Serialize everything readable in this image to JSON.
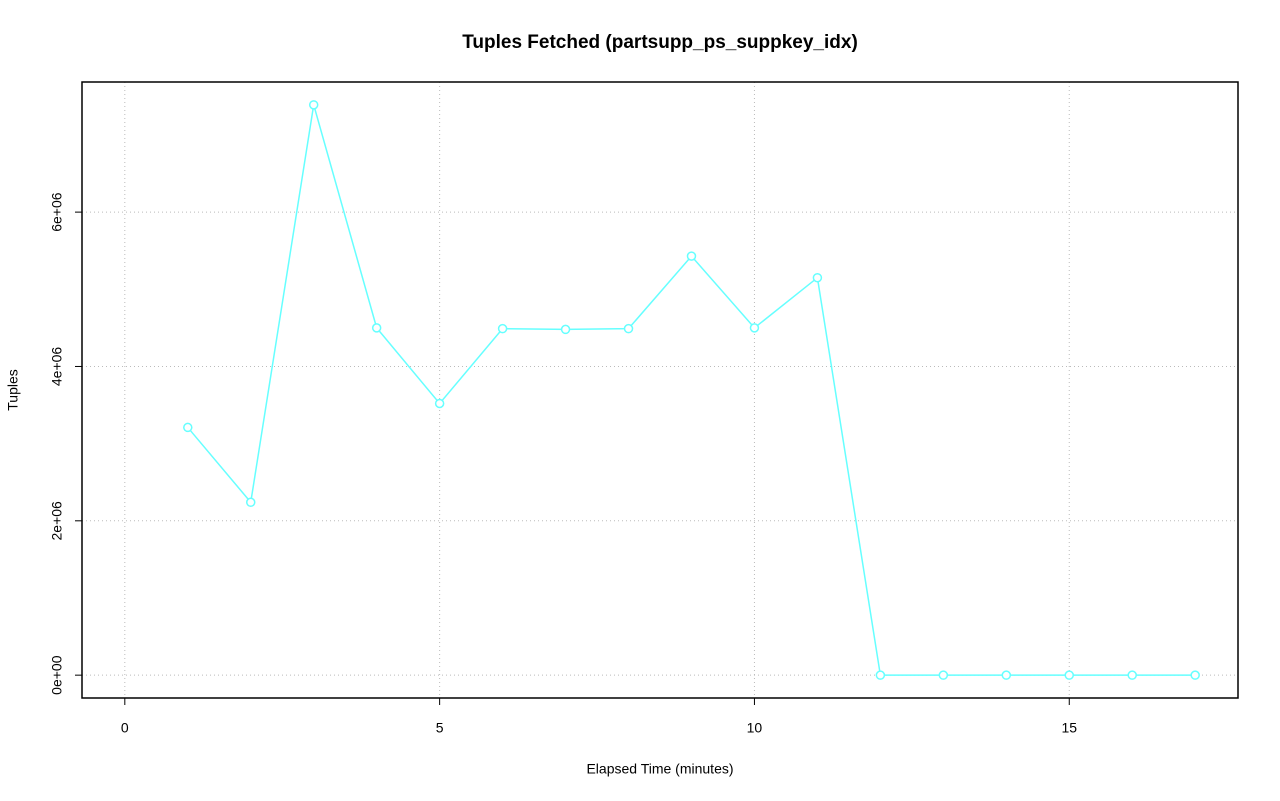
{
  "chart_data": {
    "type": "line",
    "title": "Tuples Fetched (partsupp_ps_suppkey_idx)",
    "x_label": "Elapsed Time (minutes)",
    "y_label": "Tuples",
    "x": [
      1,
      2,
      3,
      4,
      5,
      6,
      7,
      8,
      9,
      10,
      11,
      12,
      13,
      14,
      15,
      16,
      17
    ],
    "series": [
      {
        "name": "partsupp_ps_suppkey_idx",
        "color": "#66ffff",
        "values": [
          3210000,
          2240000,
          7390000,
          4500000,
          3520000,
          4490000,
          4480000,
          4490000,
          5430000,
          4500000,
          5150000,
          0,
          0,
          0,
          0,
          0,
          0
        ]
      }
    ],
    "xlim": [
      -0.68,
      17.68
    ],
    "ylim": [
      -296000,
      7686000
    ],
    "xticks": [
      0,
      5,
      10,
      15
    ],
    "yticks": [
      {
        "value": 0,
        "label": "0e+00"
      },
      {
        "value": 2000000,
        "label": "2e+06"
      },
      {
        "value": 4000000,
        "label": "4e+06"
      },
      {
        "value": 6000000,
        "label": "6e+06"
      }
    ],
    "grid": true
  }
}
